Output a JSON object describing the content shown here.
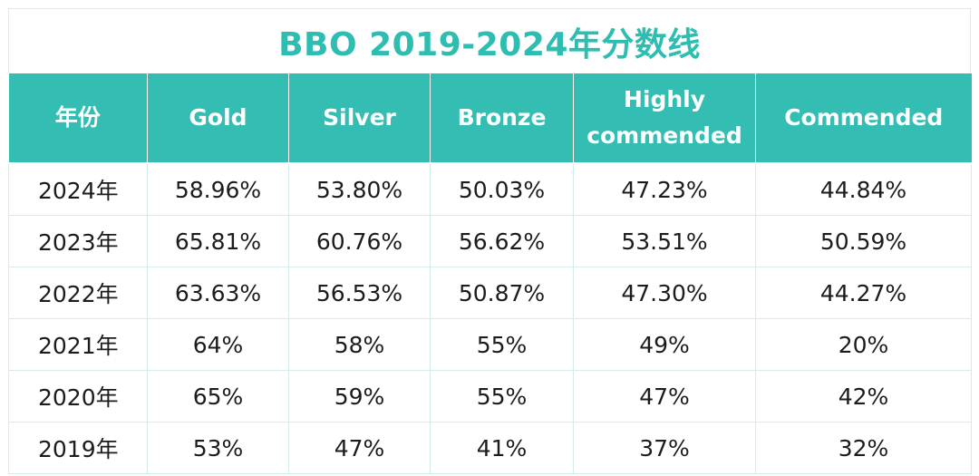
{
  "title": "BBO 2019-2024年分数线",
  "headers": [
    "年份",
    "Gold",
    "Silver",
    "Bronze",
    "Highly commended",
    "Commended"
  ],
  "rows": [
    [
      "2024年",
      "58.96%",
      "53.80%",
      "50.03%",
      "47.23%",
      "44.84%"
    ],
    [
      "2023年",
      "65.81%",
      "60.76%",
      "56.62%",
      "53.51%",
      "50.59%"
    ],
    [
      "2022年",
      "63.63%",
      "56.53%",
      "50.87%",
      "47.30%",
      "44.27%"
    ],
    [
      "2021年",
      "64%",
      "58%",
      "55%",
      "49%",
      "20%"
    ],
    [
      "2020年",
      "65%",
      "59%",
      "55%",
      "47%",
      "42%"
    ],
    [
      "2019年",
      "53%",
      "47%",
      "41%",
      "37%",
      "32%"
    ]
  ],
  "colors": {
    "accent": "#34bdb2",
    "title": "#2dbdb1",
    "header_text": "#ffffff",
    "grid": "#d6ecea"
  }
}
